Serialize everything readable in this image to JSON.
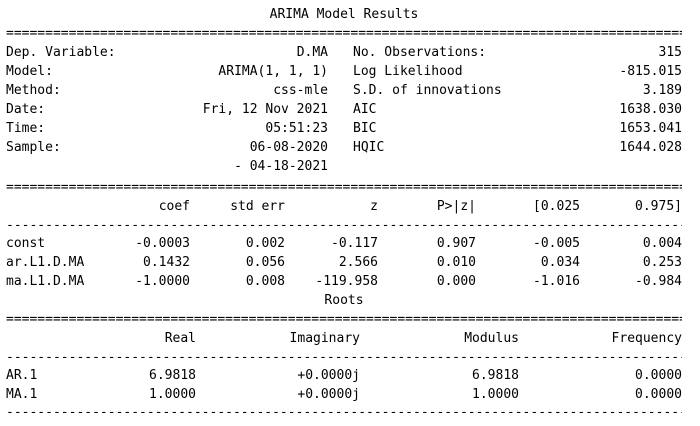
{
  "title": "ARIMA Model Results",
  "roots_title": "Roots",
  "rules": {
    "double": "============================================================================================================",
    "single": "------------------------------------------------------------------------------------------------------------"
  },
  "summary": {
    "left": [
      {
        "label": "Dep. Variable:",
        "value": "D.MA"
      },
      {
        "label": "Model:",
        "value": "ARIMA(1, 1, 1)"
      },
      {
        "label": "Method:",
        "value": "css-mle"
      },
      {
        "label": "Date:",
        "value": "Fri, 12 Nov 2021"
      },
      {
        "label": "Time:",
        "value": "05:51:23"
      },
      {
        "label": "Sample:",
        "value": "06-08-2020"
      },
      {
        "label": "",
        "value": "- 04-18-2021"
      }
    ],
    "right": [
      {
        "label": "No. Observations:",
        "value": "315"
      },
      {
        "label": "Log Likelihood",
        "value": "-815.015"
      },
      {
        "label": "S.D. of innovations",
        "value": "3.189"
      },
      {
        "label": "AIC",
        "value": "1638.030"
      },
      {
        "label": "BIC",
        "value": "1653.041"
      },
      {
        "label": "HQIC",
        "value": "1644.028"
      }
    ]
  },
  "coef_table": {
    "headers": [
      "",
      "coef",
      "std err",
      "z",
      "P>|z|",
      "[0.025",
      "0.975]"
    ],
    "rows": [
      [
        "const",
        "-0.0003",
        "0.002",
        "-0.117",
        "0.907",
        "-0.005",
        "0.004"
      ],
      [
        "ar.L1.D.MA",
        "0.1432",
        "0.056",
        "2.566",
        "0.010",
        "0.034",
        "0.253"
      ],
      [
        "ma.L1.D.MA",
        "-1.0000",
        "0.008",
        "-119.958",
        "0.000",
        "-1.016",
        "-0.984"
      ]
    ]
  },
  "roots_table": {
    "headers": [
      "",
      "Real",
      "Imaginary",
      "Modulus",
      "Frequency"
    ],
    "rows": [
      [
        "AR.1",
        "6.9818",
        "+0.0000j",
        "6.9818",
        "0.0000"
      ],
      [
        "MA.1",
        "1.0000",
        "+0.0000j",
        "1.0000",
        "0.0000"
      ]
    ]
  }
}
